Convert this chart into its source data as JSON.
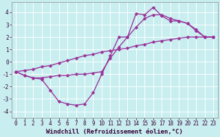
{
  "background_color": "#c8eef0",
  "grid_color": "#ffffff",
  "line_color": "#993399",
  "marker": "D",
  "marker_size": 2.5,
  "line_width": 1.0,
  "xlabel": "Windchill (Refroidissement éolien,°C)",
  "xlabel_fontsize": 6.5,
  "tick_fontsize": 5.5,
  "xlim": [
    -0.5,
    23.5
  ],
  "ylim": [
    -4.5,
    4.8
  ],
  "yticks": [
    -4,
    -3,
    -2,
    -1,
    0,
    1,
    2,
    3,
    4
  ],
  "xticks": [
    0,
    1,
    2,
    3,
    4,
    5,
    6,
    7,
    8,
    9,
    10,
    11,
    12,
    13,
    14,
    15,
    16,
    17,
    18,
    19,
    20,
    21,
    22,
    23
  ],
  "series": [
    {
      "x": [
        0,
        1,
        2,
        3,
        4,
        5,
        6,
        7,
        8,
        9,
        10,
        11,
        12,
        13,
        14,
        15,
        16,
        17,
        18,
        19,
        20,
        21,
        22,
        23
      ],
      "y": [
        -0.8,
        -1.1,
        -1.3,
        -1.4,
        -2.3,
        -3.2,
        -3.4,
        -3.5,
        -3.4,
        -2.5,
        -1.0,
        0.5,
        2.0,
        2.0,
        3.9,
        3.8,
        4.4,
        3.7,
        3.3,
        3.3,
        3.1,
        2.5,
        2.0,
        2.0
      ]
    },
    {
      "x": [
        0,
        1,
        2,
        3,
        4,
        5,
        6,
        7,
        8,
        9,
        10,
        11,
        12,
        13,
        14,
        15,
        16,
        17,
        18,
        19,
        20,
        21,
        22,
        23
      ],
      "y": [
        -0.8,
        -1.1,
        -1.3,
        -1.3,
        -1.2,
        -1.1,
        -1.1,
        -1.0,
        -1.0,
        -0.9,
        -0.8,
        0.3,
        1.2,
        2.0,
        2.8,
        3.5,
        3.8,
        3.8,
        3.5,
        3.3,
        3.1,
        2.6,
        2.0,
        2.0
      ]
    },
    {
      "x": [
        0,
        1,
        2,
        3,
        4,
        5,
        6,
        7,
        8,
        9,
        10,
        11,
        12,
        13,
        14,
        15,
        16,
        17,
        18,
        19,
        20,
        21,
        22,
        23
      ],
      "y": [
        -0.8,
        -0.7,
        -0.6,
        -0.4,
        -0.3,
        -0.1,
        0.1,
        0.3,
        0.5,
        0.6,
        0.8,
        0.9,
        1.0,
        1.1,
        1.3,
        1.4,
        1.6,
        1.7,
        1.8,
        1.9,
        2.0,
        2.0,
        2.0,
        2.0
      ]
    }
  ]
}
